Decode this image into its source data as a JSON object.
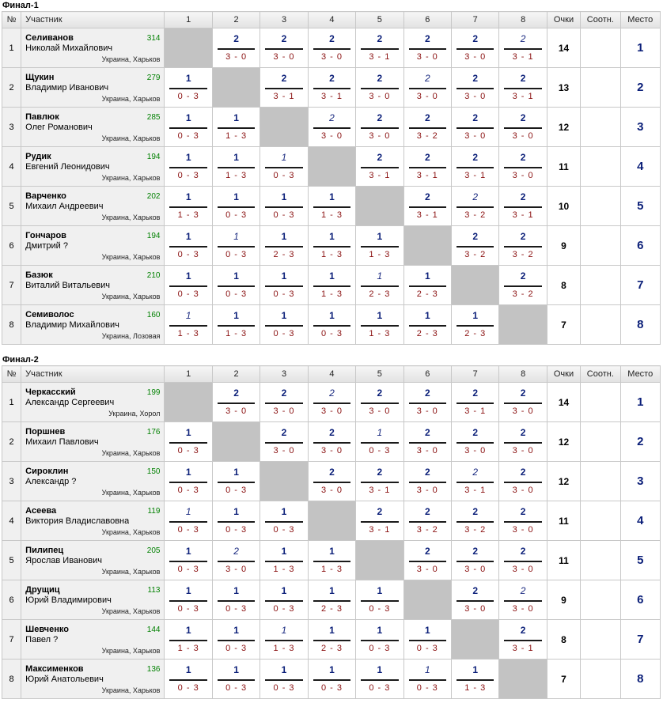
{
  "headers": {
    "num": "№",
    "participant": "Участник",
    "cols": [
      "1",
      "2",
      "3",
      "4",
      "5",
      "6",
      "7",
      "8"
    ],
    "points": "Очки",
    "ratio": "Соотн.",
    "place": "Место"
  },
  "groups": [
    {
      "title": "Финал-1",
      "players": [
        {
          "n": "1",
          "last": "Селиванов",
          "first": "Николай Михайлович",
          "rating": "314",
          "city": "Украина, Харьков",
          "cells": [
            null,
            {
              "p": "2",
              "s": "3 - 0"
            },
            {
              "p": "2",
              "s": "3 - 0"
            },
            {
              "p": "2",
              "s": "3 - 0"
            },
            {
              "p": "2",
              "s": "3 - 1"
            },
            {
              "p": "2",
              "s": "3 - 0"
            },
            {
              "p": "2",
              "s": "3 - 0"
            },
            {
              "p": "2",
              "s": "3 - 1",
              "soft": true
            }
          ],
          "total": "14",
          "ratio": "",
          "place": "1"
        },
        {
          "n": "2",
          "last": "Щукин",
          "first": "Владимир Иванович",
          "rating": "279",
          "city": "Украина, Харьков",
          "cells": [
            {
              "p": "1",
              "s": "0 - 3"
            },
            null,
            {
              "p": "2",
              "s": "3 - 1"
            },
            {
              "p": "2",
              "s": "3 - 1"
            },
            {
              "p": "2",
              "s": "3 - 0"
            },
            {
              "p": "2",
              "s": "3 - 0",
              "soft": true
            },
            {
              "p": "2",
              "s": "3 - 0"
            },
            {
              "p": "2",
              "s": "3 - 1"
            }
          ],
          "total": "13",
          "ratio": "",
          "place": "2"
        },
        {
          "n": "3",
          "last": "Павлюк",
          "first": "Олег Романович",
          "rating": "285",
          "city": "Украина, Харьков",
          "cells": [
            {
              "p": "1",
              "s": "0 - 3"
            },
            {
              "p": "1",
              "s": "1 - 3"
            },
            null,
            {
              "p": "2",
              "s": "3 - 0",
              "soft": true
            },
            {
              "p": "2",
              "s": "3 - 0"
            },
            {
              "p": "2",
              "s": "3 - 2"
            },
            {
              "p": "2",
              "s": "3 - 0"
            },
            {
              "p": "2",
              "s": "3 - 0"
            }
          ],
          "total": "12",
          "ratio": "",
          "place": "3"
        },
        {
          "n": "4",
          "last": "Рудик",
          "first": "Евгений Леонидович",
          "rating": "194",
          "city": "Украина, Харьков",
          "cells": [
            {
              "p": "1",
              "s": "0 - 3"
            },
            {
              "p": "1",
              "s": "1 - 3"
            },
            {
              "p": "1",
              "s": "0 - 3",
              "soft": true
            },
            null,
            {
              "p": "2",
              "s": "3 - 1"
            },
            {
              "p": "2",
              "s": "3 - 1"
            },
            {
              "p": "2",
              "s": "3 - 1"
            },
            {
              "p": "2",
              "s": "3 - 0"
            }
          ],
          "total": "11",
          "ratio": "",
          "place": "4"
        },
        {
          "n": "5",
          "last": "Варченко",
          "first": "Михаил Андреевич",
          "rating": "202",
          "city": "Украина, Харьков",
          "cells": [
            {
              "p": "1",
              "s": "1 - 3"
            },
            {
              "p": "1",
              "s": "0 - 3"
            },
            {
              "p": "1",
              "s": "0 - 3"
            },
            {
              "p": "1",
              "s": "1 - 3"
            },
            null,
            {
              "p": "2",
              "s": "3 - 1"
            },
            {
              "p": "2",
              "s": "3 - 2",
              "soft": true
            },
            {
              "p": "2",
              "s": "3 - 1"
            }
          ],
          "total": "10",
          "ratio": "",
          "place": "5"
        },
        {
          "n": "6",
          "last": "Гончаров",
          "first": "Дмитрий ?",
          "rating": "194",
          "city": "Украина, Харьков",
          "cells": [
            {
              "p": "1",
              "s": "0 - 3"
            },
            {
              "p": "1",
              "s": "0 - 3",
              "soft": true
            },
            {
              "p": "1",
              "s": "2 - 3"
            },
            {
              "p": "1",
              "s": "1 - 3"
            },
            {
              "p": "1",
              "s": "1 - 3"
            },
            null,
            {
              "p": "2",
              "s": "3 - 2"
            },
            {
              "p": "2",
              "s": "3 - 2"
            }
          ],
          "total": "9",
          "ratio": "",
          "place": "6"
        },
        {
          "n": "7",
          "last": "Базюк",
          "first": "Виталий Витальевич",
          "rating": "210",
          "city": "Украина, Харьков",
          "cells": [
            {
              "p": "1",
              "s": "0 - 3"
            },
            {
              "p": "1",
              "s": "0 - 3"
            },
            {
              "p": "1",
              "s": "0 - 3"
            },
            {
              "p": "1",
              "s": "1 - 3"
            },
            {
              "p": "1",
              "s": "2 - 3",
              "soft": true
            },
            {
              "p": "1",
              "s": "2 - 3"
            },
            null,
            {
              "p": "2",
              "s": "3 - 2"
            }
          ],
          "total": "8",
          "ratio": "",
          "place": "7"
        },
        {
          "n": "8",
          "last": "Семиволос",
          "first": "Владимир Михайлович",
          "rating": "160",
          "city": "Украина, Лозовая",
          "cells": [
            {
              "p": "1",
              "s": "1 - 3",
              "soft": true
            },
            {
              "p": "1",
              "s": "1 - 3"
            },
            {
              "p": "1",
              "s": "0 - 3"
            },
            {
              "p": "1",
              "s": "0 - 3"
            },
            {
              "p": "1",
              "s": "1 - 3"
            },
            {
              "p": "1",
              "s": "2 - 3"
            },
            {
              "p": "1",
              "s": "2 - 3"
            },
            null
          ],
          "total": "7",
          "ratio": "",
          "place": "8"
        }
      ]
    },
    {
      "title": "Финал-2",
      "players": [
        {
          "n": "1",
          "last": "Черкасский",
          "first": "Александр Сергеевич",
          "rating": "199",
          "city": "Украина, Хорол",
          "cells": [
            null,
            {
              "p": "2",
              "s": "3 - 0"
            },
            {
              "p": "2",
              "s": "3 - 0"
            },
            {
              "p": "2",
              "s": "3 - 0",
              "soft": true
            },
            {
              "p": "2",
              "s": "3 - 0"
            },
            {
              "p": "2",
              "s": "3 - 0"
            },
            {
              "p": "2",
              "s": "3 - 1"
            },
            {
              "p": "2",
              "s": "3 - 0"
            }
          ],
          "total": "14",
          "ratio": "",
          "place": "1"
        },
        {
          "n": "2",
          "last": "Поршнев",
          "first": "Михаил Павлович",
          "rating": "176",
          "city": "Украина, Харьков",
          "cells": [
            {
              "p": "1",
              "s": "0 - 3"
            },
            null,
            {
              "p": "2",
              "s": "3 - 0"
            },
            {
              "p": "2",
              "s": "3 - 0"
            },
            {
              "p": "1",
              "s": "0 - 3",
              "soft": true
            },
            {
              "p": "2",
              "s": "3 - 0"
            },
            {
              "p": "2",
              "s": "3 - 0"
            },
            {
              "p": "2",
              "s": "3 - 0"
            }
          ],
          "total": "12",
          "ratio": "",
          "place": "2"
        },
        {
          "n": "3",
          "last": "Сироклин",
          "first": "Александр ?",
          "rating": "150",
          "city": "Украина, Харьков",
          "cells": [
            {
              "p": "1",
              "s": "0 - 3"
            },
            {
              "p": "1",
              "s": "0 - 3"
            },
            null,
            {
              "p": "2",
              "s": "3 - 0"
            },
            {
              "p": "2",
              "s": "3 - 1"
            },
            {
              "p": "2",
              "s": "3 - 0"
            },
            {
              "p": "2",
              "s": "3 - 1",
              "soft": true
            },
            {
              "p": "2",
              "s": "3 - 0"
            }
          ],
          "total": "12",
          "ratio": "",
          "place": "3"
        },
        {
          "n": "4",
          "last": "Асеева",
          "first": "Виктория Владиславовна",
          "rating": "119",
          "city": "Украина, Харьков",
          "cells": [
            {
              "p": "1",
              "s": "0 - 3",
              "soft": true
            },
            {
              "p": "1",
              "s": "0 - 3"
            },
            {
              "p": "1",
              "s": "0 - 3"
            },
            null,
            {
              "p": "2",
              "s": "3 - 1"
            },
            {
              "p": "2",
              "s": "3 - 2"
            },
            {
              "p": "2",
              "s": "3 - 2"
            },
            {
              "p": "2",
              "s": "3 - 0"
            }
          ],
          "total": "11",
          "ratio": "",
          "place": "4"
        },
        {
          "n": "5",
          "last": "Пилипец",
          "first": "Ярослав Иванович",
          "rating": "205",
          "city": "Украина, Харьков",
          "cells": [
            {
              "p": "1",
              "s": "0 - 3"
            },
            {
              "p": "2",
              "s": "3 - 0",
              "soft": true
            },
            {
              "p": "1",
              "s": "1 - 3"
            },
            {
              "p": "1",
              "s": "1 - 3"
            },
            null,
            {
              "p": "2",
              "s": "3 - 0"
            },
            {
              "p": "2",
              "s": "3 - 0"
            },
            {
              "p": "2",
              "s": "3 - 0"
            }
          ],
          "total": "11",
          "ratio": "",
          "place": "5"
        },
        {
          "n": "6",
          "last": "Друщиц",
          "first": "Юрий Владимирович",
          "rating": "113",
          "city": "Украина, Харьков",
          "cells": [
            {
              "p": "1",
              "s": "0 - 3"
            },
            {
              "p": "1",
              "s": "0 - 3"
            },
            {
              "p": "1",
              "s": "0 - 3"
            },
            {
              "p": "1",
              "s": "2 - 3"
            },
            {
              "p": "1",
              "s": "0 - 3"
            },
            null,
            {
              "p": "2",
              "s": "3 - 0"
            },
            {
              "p": "2",
              "s": "3 - 0",
              "soft": true
            }
          ],
          "total": "9",
          "ratio": "",
          "place": "6"
        },
        {
          "n": "7",
          "last": "Шевченко",
          "first": "Павел ?",
          "rating": "144",
          "city": "Украина, Харьков",
          "cells": [
            {
              "p": "1",
              "s": "1 - 3"
            },
            {
              "p": "1",
              "s": "0 - 3"
            },
            {
              "p": "1",
              "s": "1 - 3",
              "soft": true
            },
            {
              "p": "1",
              "s": "2 - 3"
            },
            {
              "p": "1",
              "s": "0 - 3"
            },
            {
              "p": "1",
              "s": "0 - 3"
            },
            null,
            {
              "p": "2",
              "s": "3 - 1"
            }
          ],
          "total": "8",
          "ratio": "",
          "place": "7"
        },
        {
          "n": "8",
          "last": "Максименков",
          "first": "Юрий Анатольевич",
          "rating": "136",
          "city": "Украина, Харьков",
          "cells": [
            {
              "p": "1",
              "s": "0 - 3"
            },
            {
              "p": "1",
              "s": "0 - 3"
            },
            {
              "p": "1",
              "s": "0 - 3"
            },
            {
              "p": "1",
              "s": "0 - 3"
            },
            {
              "p": "1",
              "s": "0 - 3"
            },
            {
              "p": "1",
              "s": "0 - 3",
              "soft": true
            },
            {
              "p": "1",
              "s": "1 - 3"
            },
            null
          ],
          "total": "7",
          "ratio": "",
          "place": "8"
        }
      ]
    }
  ]
}
